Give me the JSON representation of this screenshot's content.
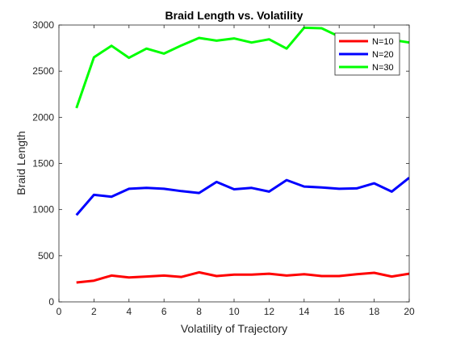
{
  "chart_data": {
    "type": "line",
    "title": "Braid Length vs. Volatility",
    "xlabel": "Volatility of Trajectory",
    "ylabel": "Braid Length",
    "xlim": [
      0,
      20
    ],
    "ylim": [
      0,
      3000
    ],
    "xticks": [
      0,
      2,
      4,
      6,
      8,
      10,
      12,
      14,
      16,
      18,
      20
    ],
    "yticks": [
      0,
      500,
      1000,
      1500,
      2000,
      2500,
      3000
    ],
    "grid": false,
    "legend_position": "top-right",
    "x": [
      1,
      2,
      3,
      4,
      5,
      6,
      7,
      8,
      9,
      10,
      11,
      12,
      13,
      14,
      15,
      16,
      17,
      18,
      19,
      20
    ],
    "series": [
      {
        "name": "N=10",
        "color": "#ff0000",
        "values": [
          210,
          230,
          285,
          265,
          275,
          285,
          270,
          320,
          280,
          295,
          295,
          305,
          285,
          300,
          280,
          280,
          300,
          315,
          275,
          305
        ]
      },
      {
        "name": "N=20",
        "color": "#0000ff",
        "values": [
          940,
          1160,
          1140,
          1225,
          1235,
          1225,
          1200,
          1180,
          1300,
          1220,
          1235,
          1195,
          1320,
          1250,
          1240,
          1225,
          1230,
          1285,
          1195,
          1345
        ]
      },
      {
        "name": "N=30",
        "color": "#00ff00",
        "values": [
          2100,
          2650,
          2775,
          2645,
          2745,
          2690,
          2780,
          2860,
          2830,
          2855,
          2810,
          2845,
          2745,
          2970,
          2965,
          2875,
          2900,
          2880,
          2840,
          2810
        ]
      }
    ]
  }
}
